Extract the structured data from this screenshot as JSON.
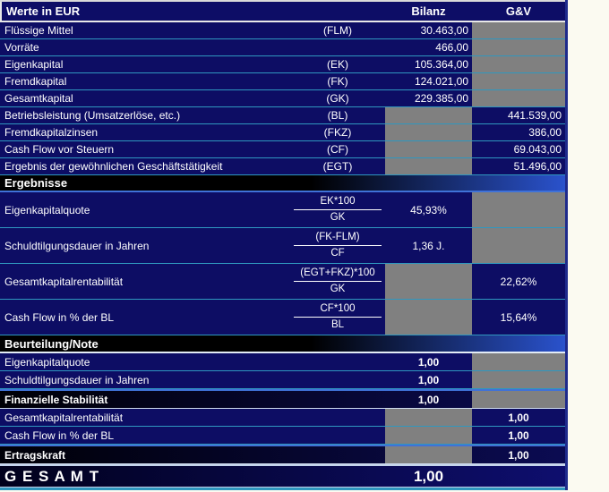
{
  "title": "Werte in EUR",
  "columns": {
    "bilanz": "Bilanz",
    "gv": "G&V"
  },
  "werte": {
    "rows": [
      {
        "label": "Flüssige Mittel",
        "abbrev": "(FLM)",
        "bilanz": "30.463,00"
      },
      {
        "label": "Vorräte",
        "abbrev": "",
        "bilanz": "466,00"
      },
      {
        "label": "Eigenkapital",
        "abbrev": "(EK)",
        "bilanz": "105.364,00"
      },
      {
        "label": "Fremdkapital",
        "abbrev": "(FK)",
        "bilanz": "124.021,00"
      },
      {
        "label": "Gesamtkapital",
        "abbrev": "(GK)",
        "bilanz": "229.385,00"
      },
      {
        "label": "Betriebsleistung (Umsatzerlöse, etc.)",
        "abbrev": "(BL)",
        "gv": "441.539,00"
      },
      {
        "label": "Fremdkapitalzinsen",
        "abbrev": "(FKZ)",
        "gv": "386,00"
      },
      {
        "label": "Cash Flow vor Steuern",
        "abbrev": "(CF)",
        "gv": "69.043,00"
      },
      {
        "label": "Ergebnis der gewöhnlichen Geschäftstätigkeit",
        "abbrev": "(EGT)",
        "gv": "51.496,00"
      }
    ]
  },
  "ergebnisse": {
    "title": "Ergebnisse",
    "rows": [
      {
        "label": "Eigenkapitalquote",
        "formula_num": "EK*100",
        "formula_den": "GK",
        "bilanz": "45,93%"
      },
      {
        "label": "Schuldtilgungsdauer in Jahren",
        "formula_num": "(FK-FLM)",
        "formula_den": "CF",
        "bilanz": "1,36 J."
      },
      {
        "label": "Gesamtkapitalrentabilität",
        "formula_num": "(EGT+FKZ)*100",
        "formula_den": "GK",
        "gv": "22,62%"
      },
      {
        "label": "Cash Flow in % der BL",
        "formula_num": "CF*100",
        "formula_den": "BL",
        "gv": "15,64%"
      }
    ]
  },
  "beurteilung": {
    "title": "Beurteilung/Note",
    "rows": [
      {
        "label": "Eigenkapitalquote",
        "bilanz": "1,00"
      },
      {
        "label": "Schuldtilgungsdauer in Jahren",
        "bilanz": "1,00"
      },
      {
        "label": "Finanzielle Stabilität",
        "bilanz": "1,00"
      },
      {
        "label": "Gesamtkapitalrentabilität",
        "gv": "1,00"
      },
      {
        "label": "Cash Flow in % der BL",
        "gv": "1,00"
      },
      {
        "label": "Ertragskraft",
        "gv": "1,00"
      }
    ]
  },
  "gesamt": {
    "label": "G E S A M T",
    "value": "1,00"
  },
  "colors": {
    "sheet_background": "#0d0d64",
    "masked_cell": "#808080",
    "row_separator": "#2f97bf",
    "accent_blue": "#3f72d8",
    "section_band_left": "#000000",
    "section_band_right": "#2a52cc",
    "text": "#ffffff",
    "page_background": "#fbfaf1"
  }
}
